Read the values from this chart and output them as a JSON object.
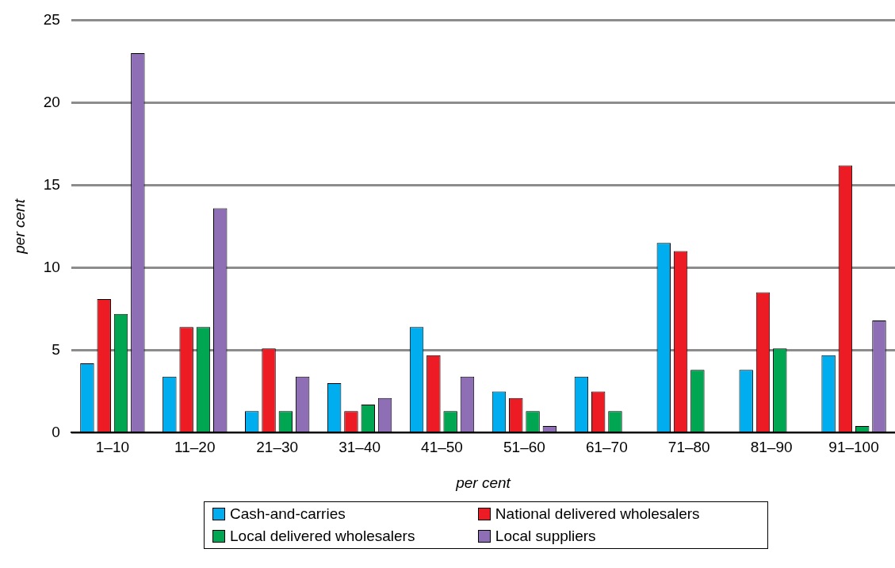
{
  "chart_data": {
    "type": "bar",
    "xlabel": "per cent",
    "ylabel": "per cent",
    "categories": [
      "1–10",
      "11–20",
      "21–30",
      "31–40",
      "41–50",
      "51–60",
      "61–70",
      "71–80",
      "81–90",
      "91–100"
    ],
    "series": [
      {
        "name": "Cash-and-carries",
        "color": "#00aeef",
        "values": [
          4.2,
          3.4,
          1.3,
          3.0,
          6.4,
          2.5,
          3.4,
          11.5,
          3.8,
          4.7
        ]
      },
      {
        "name": "National delivered wholesalers",
        "color": "#ed1c24",
        "values": [
          8.1,
          6.4,
          5.1,
          1.3,
          4.7,
          2.1,
          2.5,
          11.0,
          8.5,
          16.2
        ]
      },
      {
        "name": "Local delivered wholesalers",
        "color": "#00a651",
        "values": [
          7.2,
          6.4,
          1.3,
          1.7,
          1.3,
          1.3,
          1.3,
          3.8,
          5.1,
          0.4
        ]
      },
      {
        "name": "Local suppliers",
        "color": "#8e6fb5",
        "values": [
          23.0,
          13.6,
          3.4,
          2.1,
          3.4,
          0.4,
          0,
          0,
          0,
          6.8
        ]
      }
    ],
    "ylim": [
      0,
      25
    ],
    "yticks": [
      0,
      5,
      10,
      15,
      20,
      25
    ],
    "grid": "y",
    "legend": "bottom"
  }
}
